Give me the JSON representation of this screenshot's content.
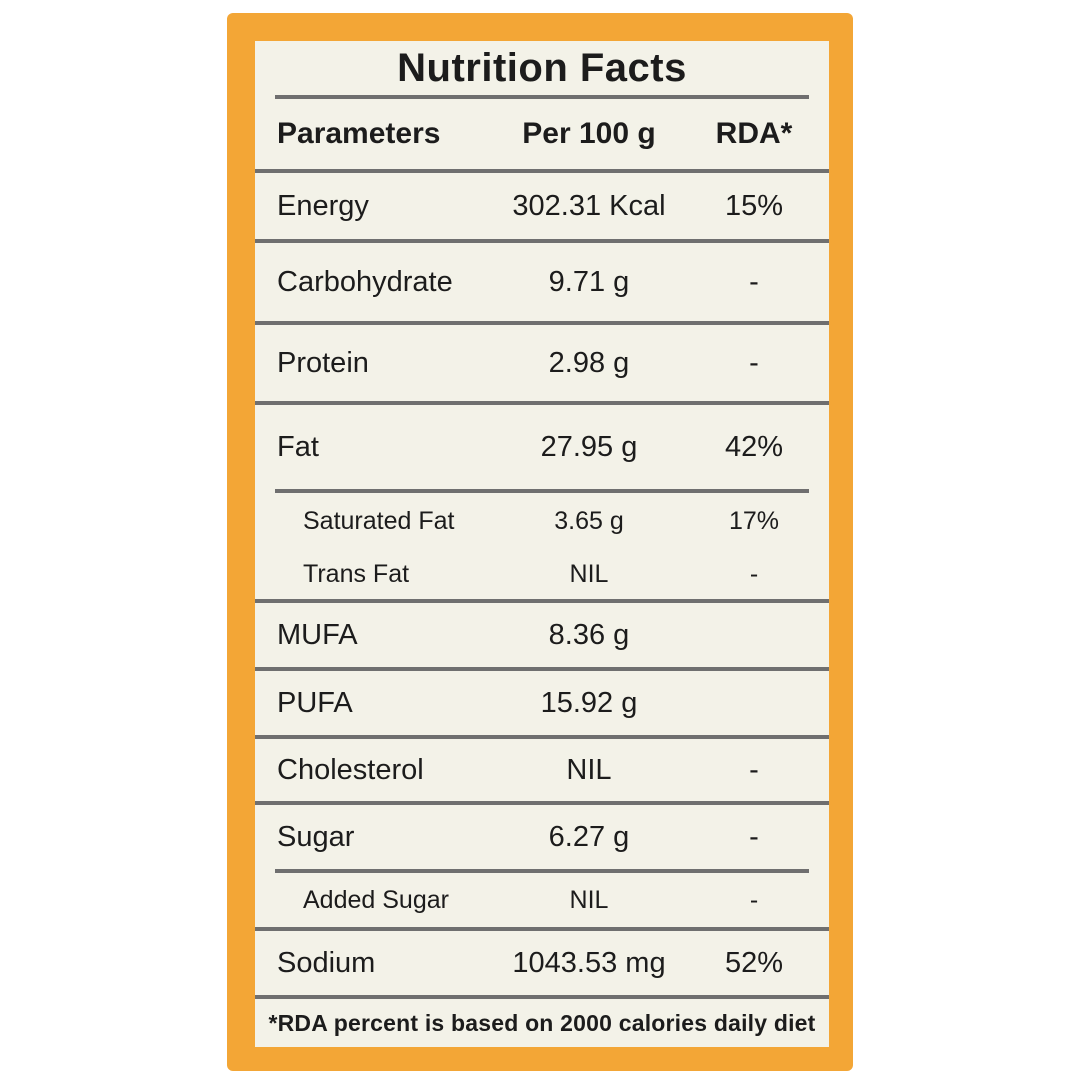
{
  "label": {
    "title": "Nutrition Facts",
    "columns": {
      "parameter": "Parameters",
      "per100": "Per 100 g",
      "rda": "RDA*"
    },
    "rows": [
      {
        "name": "Energy",
        "value": "302.31 Kcal",
        "rda": "15%"
      },
      {
        "name": "Carbohydrate",
        "value": "9.71 g",
        "rda": "-"
      },
      {
        "name": "Protein",
        "value": "2.98 g",
        "rda": "-"
      },
      {
        "name": "Fat",
        "value": "27.95 g",
        "rda": "42%"
      },
      {
        "name": "Saturated Fat",
        "value": "3.65 g",
        "rda": "17%"
      },
      {
        "name": "Trans Fat",
        "value": "NIL",
        "rda": "-"
      },
      {
        "name": "MUFA",
        "value": "8.36 g",
        "rda": ""
      },
      {
        "name": "PUFA",
        "value": "15.92 g",
        "rda": ""
      },
      {
        "name": "Cholesterol",
        "value": "NIL",
        "rda": "-"
      },
      {
        "name": "Sugar",
        "value": "6.27 g",
        "rda": "-"
      },
      {
        "name": "Added Sugar",
        "value": "NIL",
        "rda": "-"
      },
      {
        "name": "Sodium",
        "value": "1043.53 mg",
        "rda": "52%"
      }
    ],
    "footnote": "*RDA percent is based on 2000 calories daily diet",
    "colors": {
      "border_orange": "#f3a636",
      "panel_cream": "#f3f2e8",
      "rule_gray": "#6f6f6f",
      "text": "#1c1c1c",
      "page_background": "#ffffff"
    }
  }
}
